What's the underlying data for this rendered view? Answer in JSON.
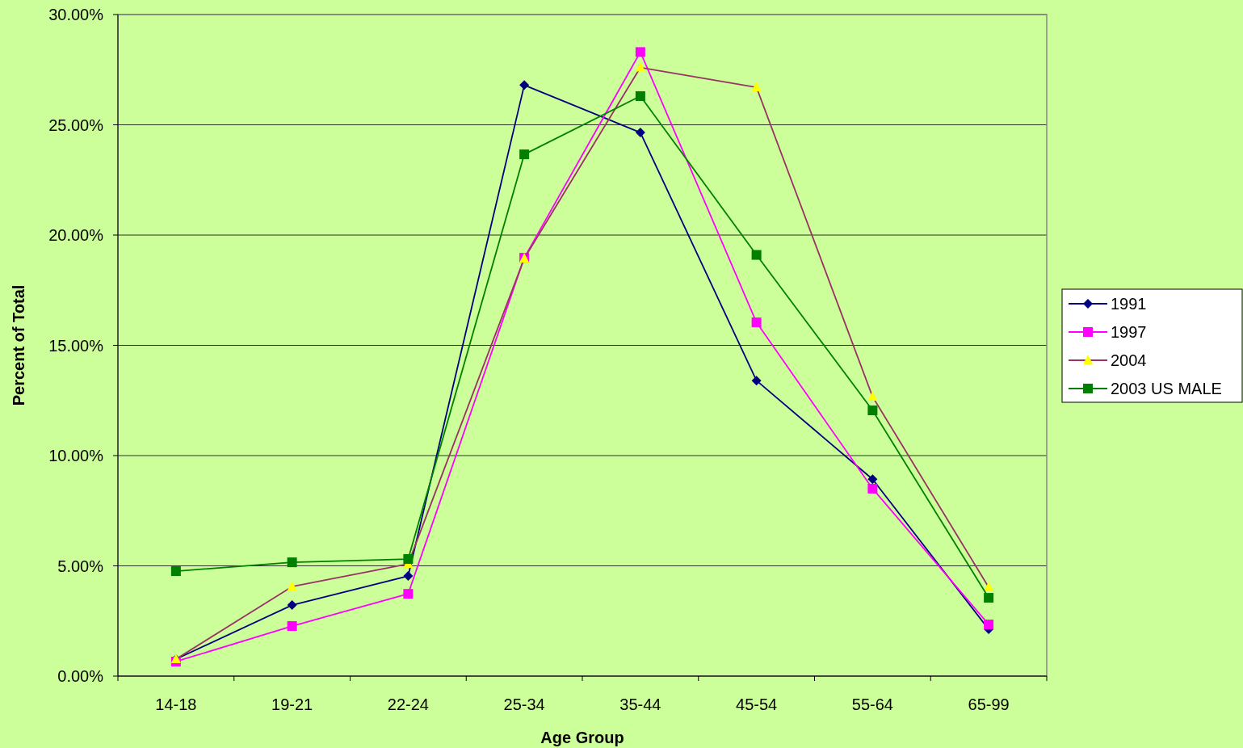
{
  "chart_data": {
    "type": "line",
    "xlabel": "Age Group",
    "ylabel": "Percent of Total",
    "categories": [
      "14-18",
      "19-21",
      "22-24",
      "25-34",
      "35-44",
      "45-54",
      "55-64",
      "65-99"
    ],
    "series": [
      {
        "name": "1991",
        "color": "#000080",
        "marker": "diamond",
        "values": [
          0.77,
          3.22,
          4.54,
          26.8,
          24.65,
          13.4,
          8.93,
          2.12
        ]
      },
      {
        "name": "1997",
        "color": "#ff00ff",
        "marker": "square",
        "values": [
          0.66,
          2.27,
          3.73,
          18.97,
          28.3,
          16.04,
          8.5,
          2.34
        ]
      },
      {
        "name": "2004",
        "color": "#993366",
        "marker": "triangle",
        "values": [
          0.77,
          4.06,
          5.09,
          18.94,
          27.6,
          26.7,
          12.67,
          4.03
        ]
      },
      {
        "name": "2003 US MALE",
        "color": "#008000",
        "marker": "square",
        "values": [
          4.76,
          5.16,
          5.31,
          23.66,
          26.3,
          19.1,
          12.05,
          3.55
        ]
      }
    ],
    "ylim": [
      0,
      30
    ],
    "yticks": [
      {
        "value": 0,
        "label": "0.00%"
      },
      {
        "value": 5,
        "label": "5.00%"
      },
      {
        "value": 10,
        "label": "10.00%"
      },
      {
        "value": 15,
        "label": "15.00%"
      },
      {
        "value": 20,
        "label": "20.00%"
      },
      {
        "value": 25,
        "label": "25.00%"
      },
      {
        "value": 30,
        "label": "30.00%"
      }
    ],
    "grid": "y",
    "legend": "right"
  }
}
